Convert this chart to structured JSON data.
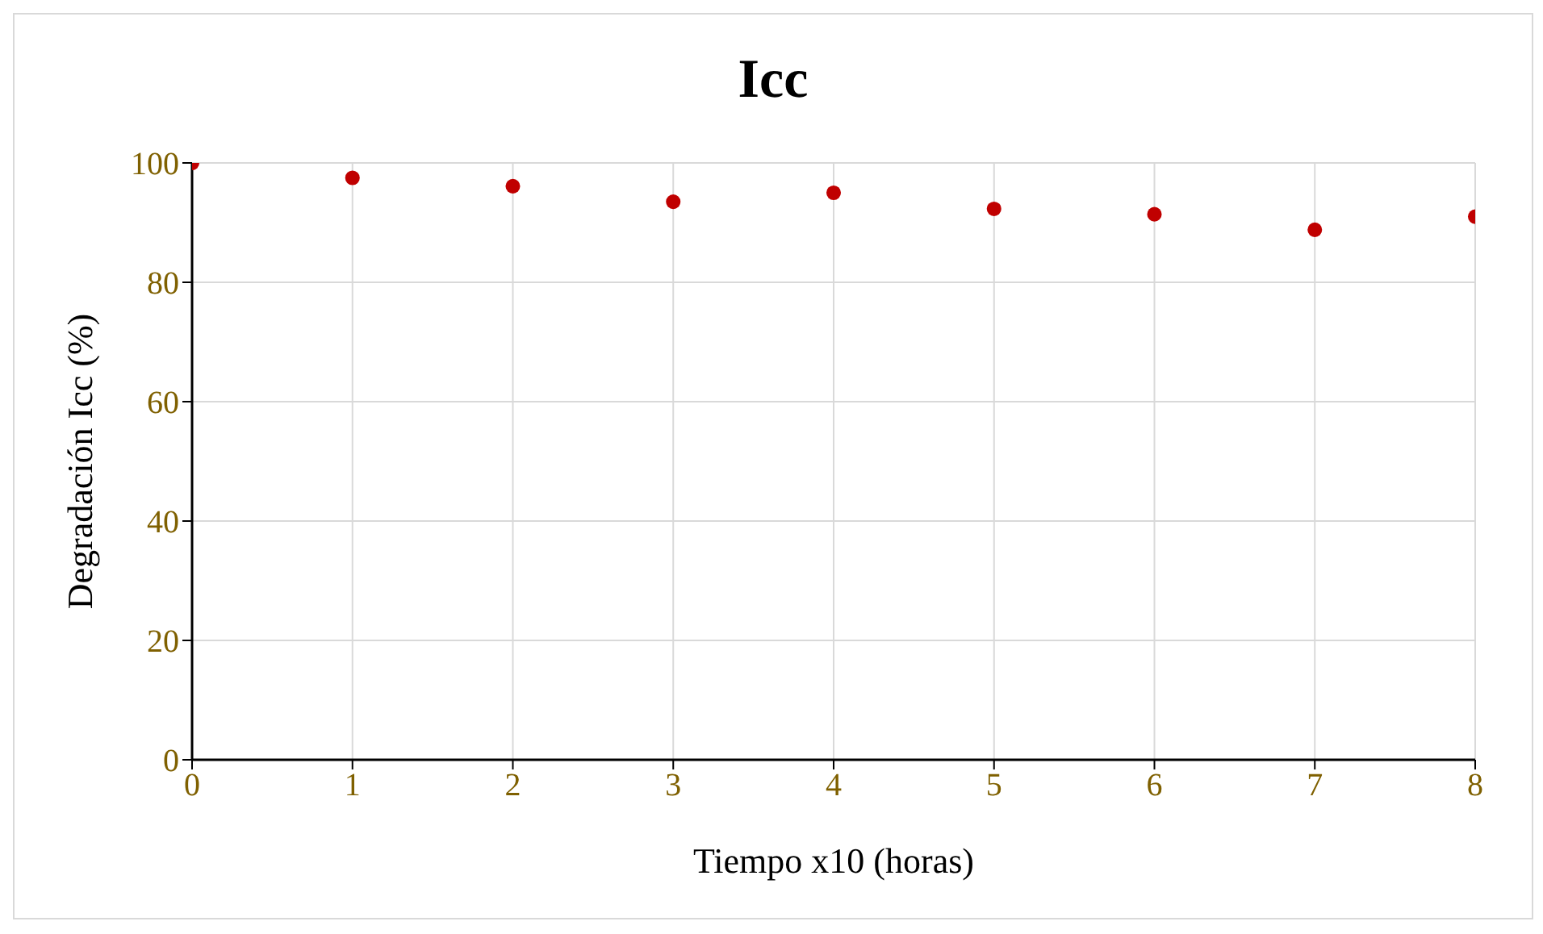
{
  "chart_data": {
    "type": "scatter",
    "title": "Icc",
    "xlabel": "Tiempo x10 (horas)",
    "ylabel": "Degradación Icc (%)",
    "x": [
      0,
      1,
      2,
      3,
      4,
      5,
      6,
      7,
      8
    ],
    "series": [
      {
        "color": "#c00000",
        "values": [
          100,
          97.5,
          96.1,
          93.5,
          95,
          92.3,
          91.4,
          88.8,
          91
        ]
      }
    ],
    "xlim": [
      0,
      8
    ],
    "xticks": [
      0,
      1,
      2,
      3,
      4,
      5,
      6,
      7,
      8
    ],
    "ylim": [
      0,
      100
    ],
    "yticks": [
      0,
      20,
      40,
      60,
      80,
      100
    ],
    "grid": true,
    "marker": "circle",
    "legend": false
  }
}
